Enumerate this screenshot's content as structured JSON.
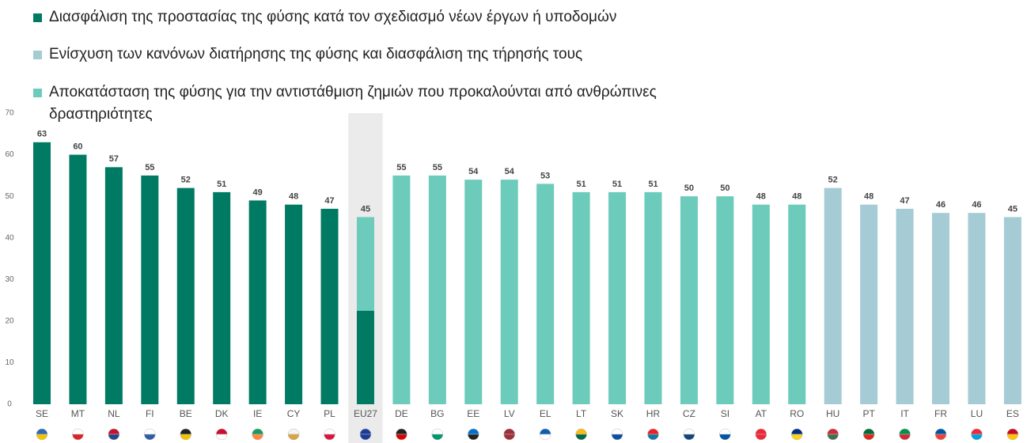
{
  "chart_data": {
    "type": "bar",
    "categories": [
      "SE",
      "MT",
      "NL",
      "FI",
      "BE",
      "DK",
      "IE",
      "CY",
      "PL",
      "EU27",
      "DE",
      "BG",
      "EE",
      "LV",
      "EL",
      "LT",
      "SK",
      "HR",
      "CZ",
      "SI",
      "AT",
      "RO",
      "HU",
      "PT",
      "IT",
      "FR",
      "LU",
      "ES"
    ],
    "series": [
      {
        "name": "Διασφάλιση της προστασίας της φύσης κατά τον σχεδιασμό νέων έργων ή υποδομών",
        "color": "#007a63",
        "values": [
          63,
          60,
          57,
          55,
          52,
          51,
          49,
          48,
          47,
          22.5,
          null,
          null,
          null,
          null,
          null,
          null,
          null,
          null,
          null,
          null,
          null,
          null,
          null,
          null,
          null,
          null,
          null,
          null
        ]
      },
      {
        "name": "Ενίσχυση των κανόνων διατήρησης της φύσης και διασφάλιση της τήρησής τους",
        "color": "#a5cbd4",
        "values": [
          null,
          null,
          null,
          null,
          null,
          null,
          null,
          null,
          null,
          null,
          null,
          null,
          null,
          null,
          null,
          null,
          null,
          null,
          null,
          null,
          null,
          null,
          52,
          48,
          47,
          46,
          46,
          45
        ]
      },
      {
        "name": "Αποκατάσταση της φύσης για την αντιστάθμιση ζημιών που προκαλούνται από ανθρώπινες δραστηριότητες",
        "color": "#6ccbbb",
        "values": [
          null,
          null,
          null,
          null,
          null,
          null,
          null,
          null,
          null,
          22.5,
          55,
          55,
          54,
          54,
          53,
          51,
          51,
          51,
          50,
          50,
          48,
          48,
          null,
          null,
          null,
          null,
          null,
          null
        ]
      }
    ],
    "stack_totals": [
      null,
      null,
      null,
      null,
      null,
      null,
      null,
      null,
      null,
      45,
      null,
      null,
      null,
      null,
      null,
      null,
      null,
      null,
      null,
      null,
      null,
      null,
      null,
      null,
      null,
      null,
      null,
      null
    ],
    "highlight": "EU27",
    "ylim": [
      0,
      70
    ],
    "yticks": [
      0,
      10,
      20,
      30,
      40,
      50,
      60,
      70
    ],
    "grid": false,
    "stacked": true
  }
}
